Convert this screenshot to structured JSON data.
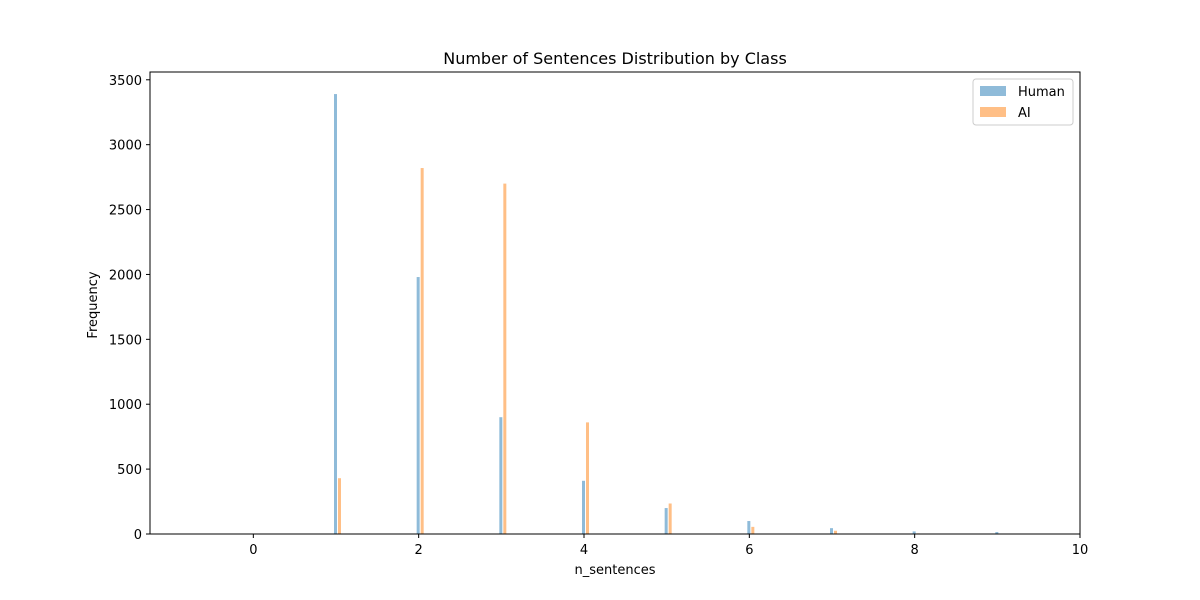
{
  "chart_data": {
    "type": "bar",
    "title": "Number of Sentences Distribution by Class",
    "xlabel": "n_sentences",
    "ylabel": "Frequency",
    "xlim": [
      -1.25,
      10
    ],
    "ylim": [
      0,
      3560
    ],
    "xticks": [
      0,
      2,
      4,
      6,
      8,
      10
    ],
    "yticks": [
      0,
      500,
      1000,
      1500,
      2000,
      2500,
      3000,
      3500
    ],
    "grid": false,
    "legend_position": "top-right",
    "series": [
      {
        "name": "Human",
        "color": "#1f77b4",
        "opacity": 0.5,
        "x": [
          1,
          2,
          3,
          4,
          5,
          6,
          7,
          8,
          9
        ],
        "values": [
          3390,
          1980,
          900,
          410,
          200,
          100,
          45,
          20,
          15
        ]
      },
      {
        "name": "AI",
        "color": "#ff7f0e",
        "opacity": 0.5,
        "x": [
          1,
          2,
          3,
          4,
          5,
          6,
          7,
          8,
          9
        ],
        "values": [
          430,
          2820,
          2700,
          860,
          235,
          55,
          25,
          5,
          3
        ]
      }
    ]
  }
}
